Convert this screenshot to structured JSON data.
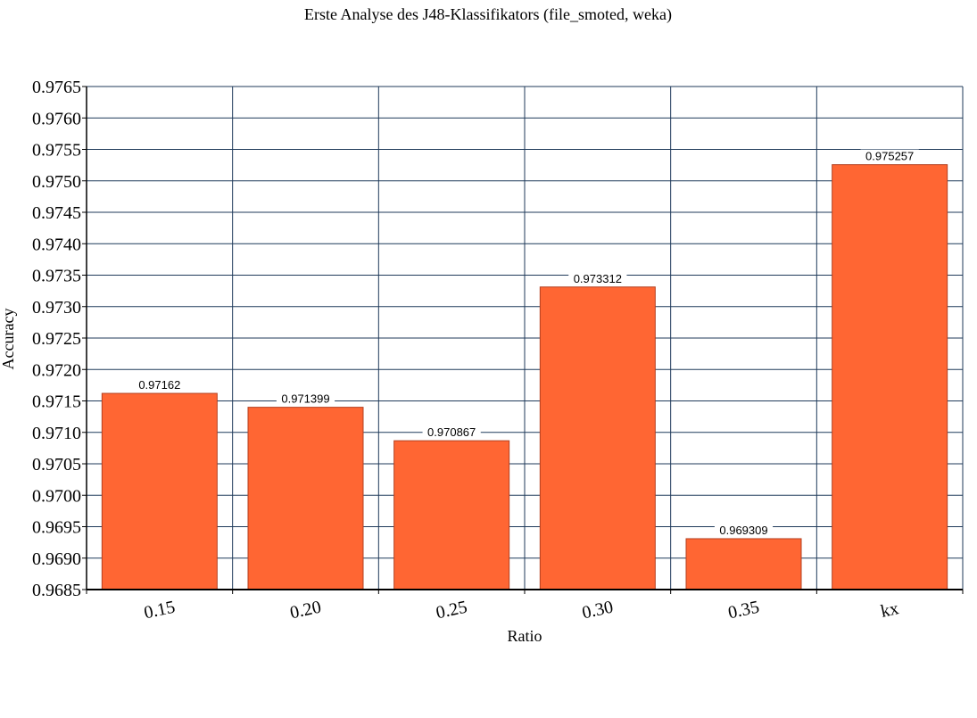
{
  "chart_data": {
    "type": "bar",
    "title": "Erste Analyse des J48-Klassifikators (file_smoted, weka)",
    "xlabel": "Ratio",
    "ylabel": "Accuracy",
    "categories": [
      "0.15",
      "0.20",
      "0.25",
      "0.30",
      "0.35",
      "kx"
    ],
    "values": [
      0.97162,
      0.971399,
      0.970867,
      0.973312,
      0.969309,
      0.975257
    ],
    "data_labels": [
      "0.97162",
      "0.971399",
      "0.970867",
      "0.973312",
      "0.969309",
      "0.975257"
    ],
    "ylim": [
      0.9685,
      0.9765
    ],
    "yticks": [
      "0.9685",
      "0.9690",
      "0.9695",
      "0.9700",
      "0.9705",
      "0.9710",
      "0.9715",
      "0.9720",
      "0.9725",
      "0.9730",
      "0.9735",
      "0.9740",
      "0.9745",
      "0.9750",
      "0.9755",
      "0.9760",
      "0.9765"
    ],
    "grid": true,
    "legend": "none",
    "colors": {
      "bar_fill": "#ff6633",
      "bar_stroke": "#b34020",
      "grid": "#1f3a5a",
      "axis": "#000000"
    }
  }
}
